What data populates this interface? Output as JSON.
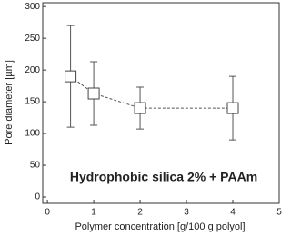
{
  "chart_data": {
    "type": "line",
    "annotation": "Hydrophobic silica 2% + PAAm",
    "x_label": "Polymer concentration [g/100 g polyol]",
    "y_label": "Pore diameter [µm]",
    "x": [
      0.5,
      1,
      2,
      4
    ],
    "series": [
      {
        "values": [
          190,
          163,
          140,
          140
        ],
        "errors": [
          80,
          50,
          33,
          50
        ],
        "color": "#555555"
      }
    ],
    "xlim": [
      -0.1,
      5
    ],
    "ylim": [
      -10,
      306
    ],
    "xticks": [
      0,
      1,
      2,
      3,
      4,
      5
    ],
    "yticks": [
      0,
      50,
      100,
      150,
      200,
      250,
      300
    ]
  }
}
